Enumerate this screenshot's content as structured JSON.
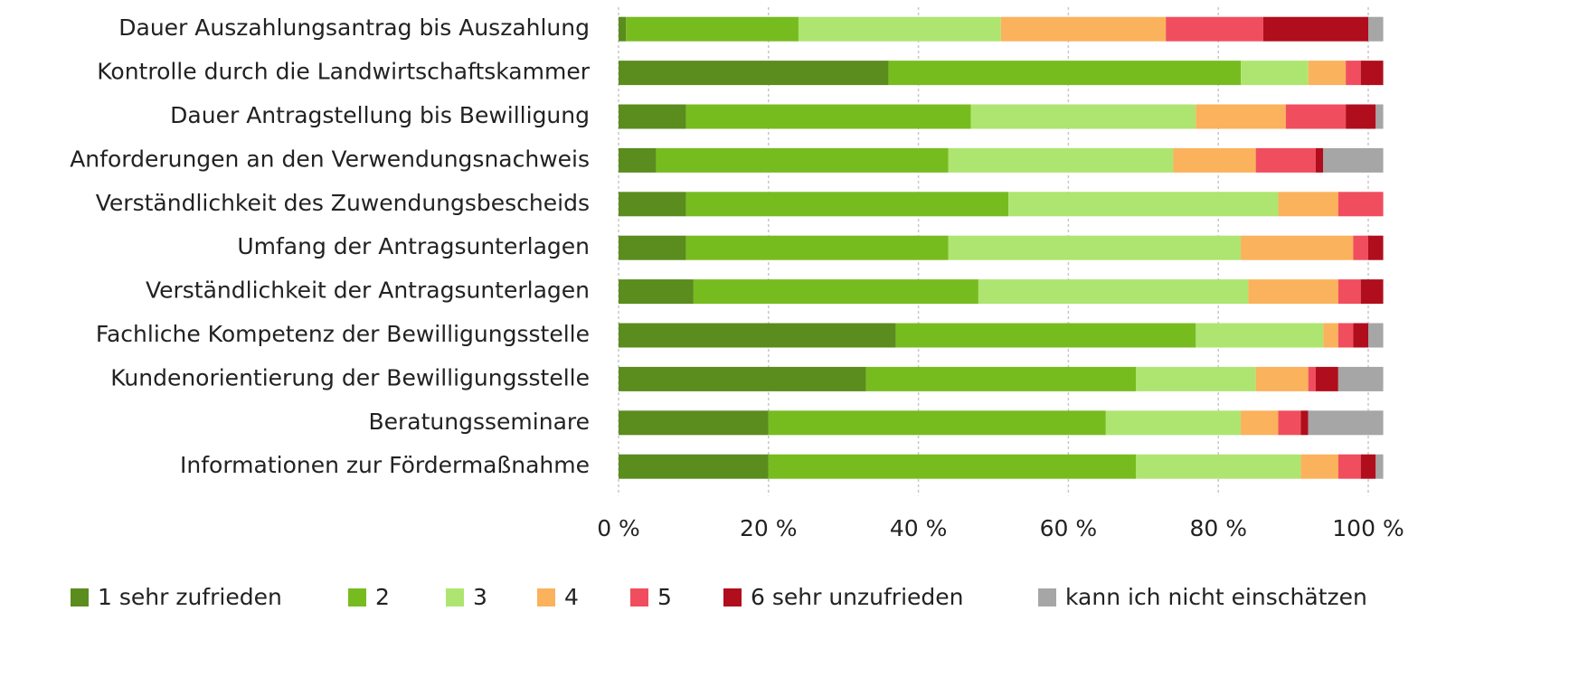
{
  "chart_data": {
    "type": "stacked-barh",
    "categories": [
      "Dauer Auszahlungsantrag bis Auszahlung",
      "Kontrolle durch die Landwirtschaftskammer",
      "Dauer Antragstellung bis  Bewilligung",
      "Anforderungen an den Verwendungsnachweis",
      "Verständlichkeit des Zuwendungsbescheids",
      "Umfang der Antragsunterlagen",
      "Verständlichkeit der Antragsunterlagen",
      "Fachliche Kompetenz der Bewilligungsstelle",
      "Kundenorientierung der Bewilligungsstelle",
      "Beratungsseminare",
      "Informationen zur Fördermaßnahme"
    ],
    "series": [
      {
        "name": "1 sehr zufrieden",
        "color": "#5b8c1e",
        "values": [
          1,
          36,
          9,
          5,
          9,
          9,
          10,
          37,
          33,
          20,
          20
        ]
      },
      {
        "name": "2",
        "color": "#77bc1f",
        "values": [
          23,
          47,
          38,
          39,
          43,
          35,
          38,
          40,
          36,
          45,
          49
        ]
      },
      {
        "name": "3",
        "color": "#aee570",
        "values": [
          27,
          9,
          30,
          30,
          36,
          39,
          36,
          17,
          16,
          18,
          22
        ]
      },
      {
        "name": "4",
        "color": "#fbb25c",
        "values": [
          22,
          5,
          12,
          11,
          8,
          15,
          12,
          2,
          7,
          5,
          5
        ]
      },
      {
        "name": "5",
        "color": "#f04e5e",
        "values": [
          13,
          2,
          8,
          8,
          6,
          2,
          3,
          2,
          1,
          3,
          3
        ]
      },
      {
        "name": "6 sehr unzufrieden",
        "color": "#b00e1c",
        "values": [
          14,
          3,
          4,
          1,
          0,
          2,
          3,
          2,
          3,
          1,
          2
        ]
      },
      {
        "name": "kann ich nicht einschätzen",
        "color": "#a6a6a6",
        "values": [
          2,
          0,
          1,
          8,
          0,
          0,
          0,
          2,
          6,
          10,
          1
        ]
      }
    ],
    "xlim": [
      0,
      100
    ],
    "xticks": [
      {
        "value": 0,
        "label": "0 %"
      },
      {
        "value": 20,
        "label": "20 %"
      },
      {
        "value": 40,
        "label": "40 %"
      },
      {
        "value": 60,
        "label": "60 %"
      },
      {
        "value": 80,
        "label": "80 %"
      },
      {
        "value": 100,
        "label": "100 %"
      }
    ],
    "grid": true,
    "legend": "bottom"
  }
}
